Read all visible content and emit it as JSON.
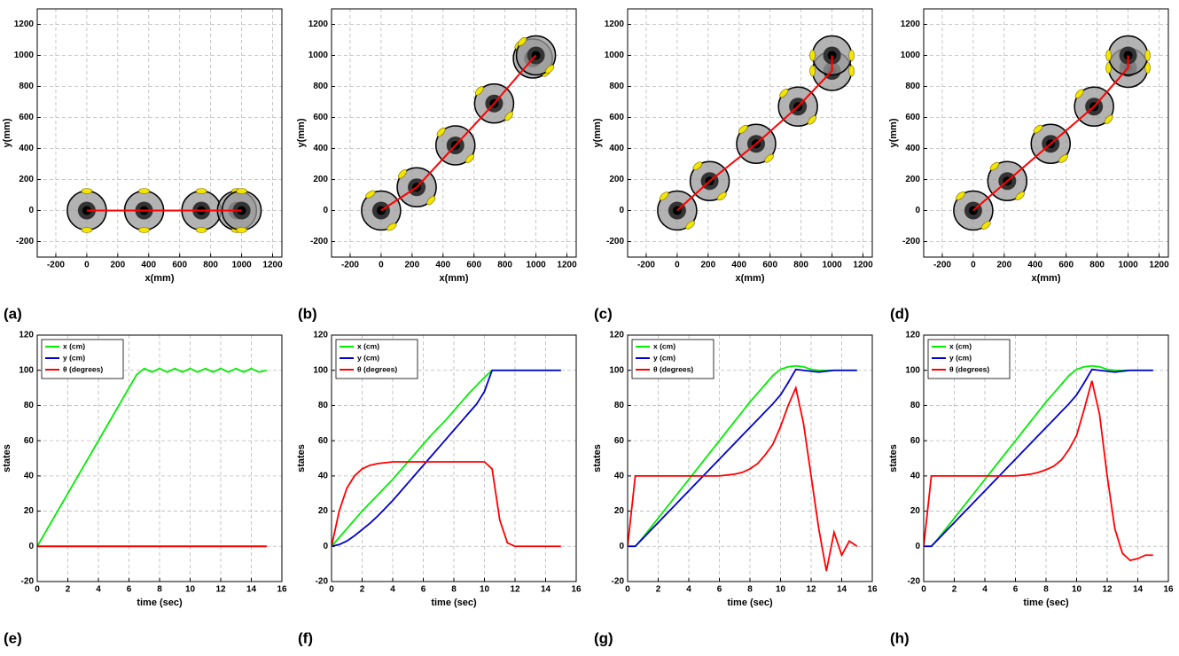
{
  "chart_data": [
    {
      "type": "trajectory",
      "panel_label": "(a)",
      "xlabel": "x(mm)",
      "ylabel": "y(mm)",
      "color": "#ff0000",
      "x": [
        0,
        370,
        740,
        970,
        1000
      ],
      "y": [
        0,
        0,
        0,
        0,
        0
      ],
      "xlim": [
        -320,
        1260
      ],
      "ylim": [
        -300,
        1300
      ],
      "xticks": [
        -200,
        0,
        200,
        400,
        600,
        800,
        1000,
        1200
      ],
      "yticks": [
        -200,
        0,
        200,
        400,
        600,
        800,
        1000,
        1200
      ],
      "grid": true
    },
    {
      "type": "trajectory",
      "panel_label": "(b)",
      "xlabel": "x(mm)",
      "ylabel": "y(mm)",
      "color": "#ff0000",
      "x": [
        0,
        230,
        480,
        730,
        980,
        1000
      ],
      "y": [
        0,
        150,
        420,
        690,
        980,
        1000
      ],
      "xlim": [
        -320,
        1260
      ],
      "ylim": [
        -300,
        1300
      ],
      "xticks": [
        -200,
        0,
        200,
        400,
        600,
        800,
        1000,
        1200
      ],
      "yticks": [
        -200,
        0,
        200,
        400,
        600,
        800,
        1000,
        1200
      ],
      "grid": true
    },
    {
      "type": "trajectory",
      "panel_label": "(c)",
      "xlabel": "x(mm)",
      "ylabel": "y(mm)",
      "color": "#ff0000",
      "x": [
        0,
        210,
        510,
        780,
        1000,
        1000
      ],
      "y": [
        0,
        190,
        430,
        670,
        900,
        1000
      ],
      "xlim": [
        -320,
        1260
      ],
      "ylim": [
        -300,
        1300
      ],
      "xticks": [
        -200,
        0,
        200,
        400,
        600,
        800,
        1000,
        1200
      ],
      "yticks": [
        -200,
        0,
        200,
        400,
        600,
        800,
        1000,
        1200
      ],
      "grid": true
    },
    {
      "type": "trajectory",
      "panel_label": "(d)",
      "xlabel": "x(mm)",
      "ylabel": "y(mm)",
      "color": "#ff0000",
      "x": [
        0,
        220,
        500,
        780,
        1000,
        1000
      ],
      "y": [
        0,
        190,
        430,
        670,
        920,
        1000
      ],
      "xlim": [
        -320,
        1260
      ],
      "ylim": [
        -300,
        1300
      ],
      "xticks": [
        -200,
        0,
        200,
        400,
        600,
        800,
        1000,
        1200
      ],
      "yticks": [
        -200,
        0,
        200,
        400,
        600,
        800,
        1000,
        1200
      ],
      "grid": true
    },
    {
      "type": "line",
      "panel_label": "(e)",
      "xlabel": "time (sec)",
      "ylabel": "states",
      "legend": "upper left",
      "x": [
        0,
        0.5,
        1,
        1.5,
        2,
        2.5,
        3,
        3.5,
        4,
        4.5,
        5,
        5.5,
        6,
        6.5,
        7,
        7.5,
        8,
        8.5,
        9,
        9.5,
        10,
        10.5,
        11,
        11.5,
        12,
        12.5,
        13,
        13.5,
        14,
        14.5,
        15
      ],
      "series": [
        {
          "name": "x (cm)",
          "color": "#00ee00",
          "values": [
            0,
            7.5,
            15,
            22.5,
            30,
            37.5,
            45,
            52.5,
            60,
            67.5,
            75,
            82.5,
            90,
            97.5,
            101,
            99,
            101,
            99,
            101,
            99,
            101,
            99,
            101,
            99,
            101,
            99,
            101,
            99,
            101,
            99,
            100
          ]
        },
        {
          "name": "y (cm)",
          "color": "#0000cc",
          "values": [
            0,
            0,
            0,
            0,
            0,
            0,
            0,
            0,
            0,
            0,
            0,
            0,
            0,
            0,
            0,
            0,
            0,
            0,
            0,
            0,
            0,
            0,
            0,
            0,
            0,
            0,
            0,
            0,
            0,
            0,
            0
          ]
        },
        {
          "name": "θ (degrees)",
          "color": "#ff0000",
          "values": [
            0,
            0,
            0,
            0,
            0,
            0,
            0,
            0,
            0,
            0,
            0,
            0,
            0,
            0,
            0,
            0,
            0,
            0,
            0,
            0,
            0,
            0,
            0,
            0,
            0,
            0,
            0,
            0,
            0,
            0,
            0
          ]
        }
      ],
      "xlim": [
        0,
        16
      ],
      "ylim": [
        -20,
        120
      ],
      "xticks": [
        0,
        2,
        4,
        6,
        8,
        10,
        12,
        14,
        16
      ],
      "yticks": [
        -20,
        0,
        20,
        40,
        60,
        80,
        100,
        120
      ],
      "grid": true
    },
    {
      "type": "line",
      "panel_label": "(f)",
      "xlabel": "time (sec)",
      "ylabel": "states",
      "legend": "upper left",
      "x": [
        0,
        0.5,
        1,
        1.5,
        2,
        2.5,
        3,
        3.5,
        4,
        4.5,
        5,
        5.5,
        6,
        6.5,
        7,
        7.5,
        8,
        8.5,
        9,
        9.5,
        10,
        10.5,
        11,
        11.5,
        12,
        12.5,
        13,
        13.5,
        14,
        14.5,
        15
      ],
      "series": [
        {
          "name": "x (cm)",
          "color": "#00ee00",
          "values": [
            0,
            5,
            10,
            15,
            20,
            24.5,
            29,
            33.5,
            38,
            43,
            48,
            53,
            58,
            63,
            67.5,
            72,
            77,
            82,
            87,
            91.5,
            96,
            100,
            100,
            100,
            100,
            100,
            100,
            100,
            100,
            100,
            100
          ]
        },
        {
          "name": "y (cm)",
          "color": "#0000cc",
          "values": [
            0,
            1,
            3,
            6,
            9.5,
            13,
            17,
            21.5,
            26,
            31,
            36,
            41,
            46,
            51,
            56,
            61,
            66,
            71,
            76,
            81,
            88,
            100,
            100,
            100,
            100,
            100,
            100,
            100,
            100,
            100,
            100
          ]
        },
        {
          "name": "θ (degrees)",
          "color": "#ff0000",
          "values": [
            0,
            20,
            33,
            40,
            44,
            46,
            47,
            47.5,
            48,
            48,
            48,
            48,
            48,
            48,
            48,
            48,
            48,
            48,
            48,
            48,
            48,
            44,
            15,
            2,
            0,
            0,
            0,
            0,
            0,
            0,
            0
          ]
        }
      ],
      "xlim": [
        0,
        16
      ],
      "ylim": [
        -20,
        120
      ],
      "xticks": [
        0,
        2,
        4,
        6,
        8,
        10,
        12,
        14,
        16
      ],
      "yticks": [
        -20,
        0,
        20,
        40,
        60,
        80,
        100,
        120
      ],
      "grid": true
    },
    {
      "type": "line",
      "panel_label": "(g)",
      "xlabel": "time (sec)",
      "ylabel": "states",
      "legend": "upper left",
      "x": [
        0,
        0.5,
        1,
        1.5,
        2,
        2.5,
        3,
        3.5,
        4,
        4.5,
        5,
        5.5,
        6,
        6.5,
        7,
        7.5,
        8,
        8.5,
        9,
        9.5,
        10,
        10.5,
        11,
        11.5,
        12,
        12.5,
        13,
        13.5,
        14,
        14.5,
        15
      ],
      "series": [
        {
          "name": "x (cm)",
          "color": "#00ee00",
          "values": [
            0,
            0,
            5,
            10.5,
            16,
            21.5,
            27,
            32.5,
            38,
            43.5,
            49,
            54.5,
            60,
            65.5,
            71,
            76.5,
            82,
            87,
            92,
            97,
            100.5,
            102,
            102.5,
            102,
            100.5,
            100,
            100,
            100,
            100,
            100,
            100
          ]
        },
        {
          "name": "y (cm)",
          "color": "#0000cc",
          "values": [
            0,
            0,
            4.5,
            9,
            13.5,
            18,
            22.5,
            27,
            31.5,
            36,
            40.5,
            45,
            49.5,
            54,
            58.5,
            63,
            67.5,
            72,
            76.5,
            81,
            86,
            93,
            100.5,
            100,
            99.5,
            99,
            99.5,
            100,
            100,
            100,
            100
          ]
        },
        {
          "name": "θ (degrees)",
          "color": "#ff0000",
          "values": [
            0,
            40,
            40,
            40,
            40,
            40,
            40,
            40,
            40,
            40,
            40,
            40,
            40,
            40.5,
            41,
            42,
            44,
            47,
            52,
            58,
            68,
            80,
            90,
            70,
            40,
            10,
            -14,
            8,
            -5,
            3,
            0
          ]
        }
      ],
      "xlim": [
        0,
        16
      ],
      "ylim": [
        -20,
        120
      ],
      "xticks": [
        0,
        2,
        4,
        6,
        8,
        10,
        12,
        14,
        16
      ],
      "yticks": [
        -20,
        0,
        20,
        40,
        60,
        80,
        100,
        120
      ],
      "grid": true
    },
    {
      "type": "line",
      "panel_label": "(h)",
      "xlabel": "time (sec)",
      "ylabel": "states",
      "legend": "upper left",
      "x": [
        0,
        0.5,
        1,
        1.5,
        2,
        2.5,
        3,
        3.5,
        4,
        4.5,
        5,
        5.5,
        6,
        6.5,
        7,
        7.5,
        8,
        8.5,
        9,
        9.5,
        10,
        10.5,
        11,
        11.5,
        12,
        12.5,
        13,
        13.5,
        14,
        14.5,
        15
      ],
      "series": [
        {
          "name": "x (cm)",
          "color": "#00ee00",
          "values": [
            0,
            0,
            5,
            10.5,
            16,
            21.5,
            27,
            32.5,
            38,
            43.5,
            49,
            54.5,
            60,
            65.5,
            71,
            76.5,
            82,
            87,
            92,
            97,
            100.5,
            102,
            102.5,
            102,
            100.5,
            100,
            100,
            100,
            100,
            100,
            100
          ]
        },
        {
          "name": "y (cm)",
          "color": "#0000cc",
          "values": [
            0,
            0,
            4.5,
            9,
            13.5,
            18,
            22.5,
            27,
            31.5,
            36,
            40.5,
            45,
            49.5,
            54,
            58.5,
            63,
            67.5,
            72,
            76.5,
            81,
            86,
            93,
            100.5,
            100,
            99.5,
            99,
            99.5,
            100,
            100,
            100,
            100
          ]
        },
        {
          "name": "θ (degrees)",
          "color": "#ff0000",
          "values": [
            0,
            40,
            40,
            40,
            40,
            40,
            40,
            40,
            40,
            40,
            40,
            40,
            40,
            40.5,
            41,
            42,
            43.5,
            45.5,
            49,
            55,
            63,
            78,
            94,
            75,
            40,
            10,
            -4,
            -8,
            -7,
            -5,
            -5
          ]
        }
      ],
      "xlim": [
        0,
        16
      ],
      "ylim": [
        -20,
        120
      ],
      "xticks": [
        0,
        2,
        4,
        6,
        8,
        10,
        12,
        14,
        16
      ],
      "yticks": [
        -20,
        0,
        20,
        40,
        60,
        80,
        100,
        120
      ],
      "grid": true
    }
  ]
}
